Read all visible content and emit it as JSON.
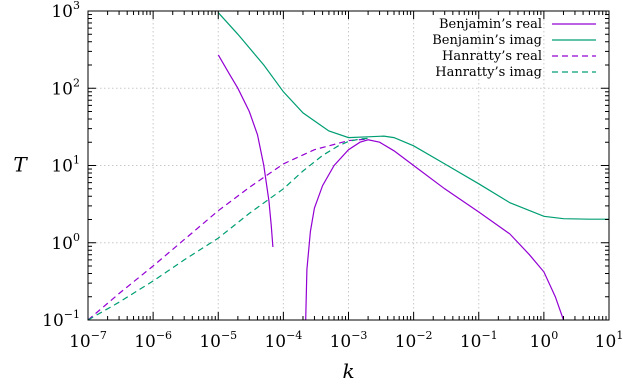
{
  "chart_data": {
    "type": "line",
    "title": "",
    "xlabel": "k",
    "ylabel": "T",
    "xscale": "log",
    "yscale": "log",
    "xlim": [
      1e-07,
      10
    ],
    "ylim": [
      0.1,
      1000
    ],
    "grid": true,
    "legend_position": "top-right",
    "x_ticks": [
      {
        "base": "10",
        "exp": "−7",
        "value": 1e-07
      },
      {
        "base": "10",
        "exp": "−6",
        "value": 1e-06
      },
      {
        "base": "10",
        "exp": "−5",
        "value": 1e-05
      },
      {
        "base": "10",
        "exp": "−4",
        "value": 0.0001
      },
      {
        "base": "10",
        "exp": "−3",
        "value": 0.001
      },
      {
        "base": "10",
        "exp": "−2",
        "value": 0.01
      },
      {
        "base": "10",
        "exp": "−1",
        "value": 0.1
      },
      {
        "base": "10",
        "exp": "0",
        "value": 1
      },
      {
        "base": "10",
        "exp": "1",
        "value": 10
      }
    ],
    "y_ticks": [
      {
        "base": "10",
        "exp": "−1",
        "value": 0.1
      },
      {
        "base": "10",
        "exp": "0",
        "value": 1
      },
      {
        "base": "10",
        "exp": "1",
        "value": 10
      },
      {
        "base": "10",
        "exp": "2",
        "value": 100
      },
      {
        "base": "10",
        "exp": "3",
        "value": 1000
      }
    ],
    "series": [
      {
        "name": "Benjamin’s real",
        "color": "#9400d3",
        "dash": "solid",
        "segments": [
          [
            [
              1e-05,
              270
            ],
            [
              1.5e-05,
              150
            ],
            [
              2e-05,
              100
            ],
            [
              3e-05,
              50
            ],
            [
              4e-05,
              25
            ],
            [
              5e-05,
              10
            ],
            [
              6e-05,
              3.5
            ],
            [
              6.5e-05,
              1.7
            ],
            [
              6.9e-05,
              0.88
            ]
          ],
          [
            [
              0.00022,
              0.1
            ],
            [
              0.00023,
              0.45
            ],
            [
              0.00026,
              1.4
            ],
            [
              0.0003,
              2.8
            ],
            [
              0.0004,
              5.5
            ],
            [
              0.0006,
              10
            ],
            [
              0.001,
              16
            ],
            [
              0.0015,
              20
            ],
            [
              0.002,
              21.5
            ],
            [
              0.003,
              20
            ],
            [
              0.005,
              15.5
            ],
            [
              0.01,
              10
            ],
            [
              0.03,
              5
            ],
            [
              0.1,
              2.5
            ],
            [
              0.3,
              1.3
            ],
            [
              0.6,
              0.7
            ],
            [
              1,
              0.42
            ],
            [
              1.5,
              0.2
            ],
            [
              2,
              0.1
            ]
          ]
        ]
      },
      {
        "name": "Benjamin’s imag",
        "color": "#009e73",
        "dash": "solid",
        "segments": [
          [
            [
              1e-05,
              950
            ],
            [
              2e-05,
              500
            ],
            [
              5e-05,
              200
            ],
            [
              0.0001,
              90
            ],
            [
              0.0002,
              48
            ],
            [
              0.0005,
              28
            ],
            [
              0.001,
              23
            ],
            [
              0.002,
              23.5
            ],
            [
              0.0035,
              24
            ],
            [
              0.005,
              23
            ],
            [
              0.01,
              18
            ],
            [
              0.03,
              10.5
            ],
            [
              0.1,
              5.8
            ],
            [
              0.3,
              3.3
            ],
            [
              1,
              2.2
            ],
            [
              2,
              2.05
            ],
            [
              5,
              2.02
            ],
            [
              10,
              2.02
            ]
          ]
        ]
      },
      {
        "name": "Hanratty’s real",
        "color": "#9400d3",
        "dash": "dashed",
        "segments": [
          [
            [
              1e-07,
              0.1
            ],
            [
              3e-07,
              0.22
            ],
            [
              1e-06,
              0.5
            ],
            [
              3e-06,
              1.1
            ],
            [
              1e-05,
              2.6
            ],
            [
              3e-05,
              5.2
            ],
            [
              0.0001,
              10.5
            ],
            [
              0.0003,
              16
            ],
            [
              0.001,
              21
            ],
            [
              0.002,
              22
            ]
          ]
        ]
      },
      {
        "name": "Hanratty’s imag",
        "color": "#009e73",
        "dash": "dashed",
        "segments": [
          [
            [
              1e-07,
              0.1
            ],
            [
              3e-07,
              0.17
            ],
            [
              1e-06,
              0.32
            ],
            [
              3e-06,
              0.6
            ],
            [
              1e-05,
              1.15
            ],
            [
              3e-05,
              2.4
            ],
            [
              0.0001,
              5
            ],
            [
              0.0002,
              8.5
            ],
            [
              0.0004,
              13.5
            ],
            [
              0.0007,
              18
            ],
            [
              0.001,
              20.5
            ],
            [
              0.0015,
              22
            ],
            [
              0.002,
              22.5
            ]
          ]
        ]
      }
    ]
  }
}
